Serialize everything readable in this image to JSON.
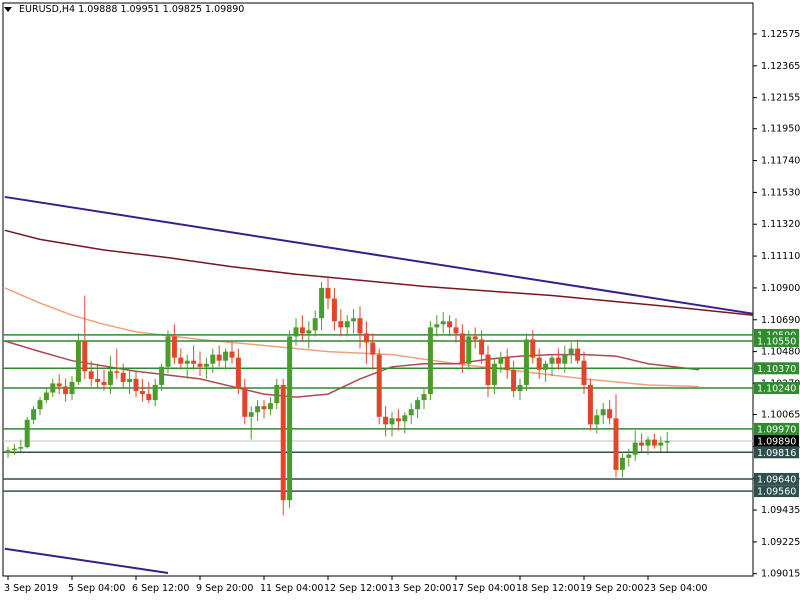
{
  "chart_data": {
    "type": "candlestick",
    "header": {
      "symbol": "EURUSD,H4",
      "ohlc": "1.09888 1.09951 1.09825 1.09890"
    },
    "ylim": [
      1.09,
      1.127
    ],
    "grid": false,
    "y_ticks": [
      "1.12575",
      "1.12365",
      "1.12155",
      "1.11950",
      "1.11740",
      "1.11530",
      "1.11320",
      "1.11110",
      "1.10900",
      "1.10690",
      "1.10480",
      "1.10270",
      "1.10065",
      "1.09855",
      "1.09645",
      "1.09435",
      "1.09225",
      "1.09015"
    ],
    "x_ticks": [
      {
        "label": "3 Sep 2019",
        "index": 0
      },
      {
        "label": "5 Sep 04:00",
        "index": 10
      },
      {
        "label": "6 Sep 12:00",
        "index": 20
      },
      {
        "label": "9 Sep 20:00",
        "index": 30
      },
      {
        "label": "11 Sep 04:00",
        "index": 40
      },
      {
        "label": "12 Sep 12:00",
        "index": 50
      },
      {
        "label": "13 Sep 20:00",
        "index": 60
      },
      {
        "label": "17 Sep 04:00",
        "index": 70
      },
      {
        "label": "18 Sep 12:00",
        "index": 80
      },
      {
        "label": "19 Sep 20:00",
        "index": 90
      },
      {
        "label": "23 Sep 04:00",
        "index": 100
      }
    ],
    "levels": [
      {
        "value": 1.1059,
        "label": "1.10590",
        "kind": "green"
      },
      {
        "value": 1.1055,
        "label": "1.10550",
        "kind": "green"
      },
      {
        "value": 1.1037,
        "label": "1.10370",
        "kind": "green"
      },
      {
        "value": 1.1024,
        "label": "1.10240",
        "kind": "green"
      },
      {
        "value": 1.0997,
        "label": "1.09970",
        "kind": "green"
      },
      {
        "value": 1.0989,
        "label": "1.09890",
        "kind": "price"
      },
      {
        "value": 1.09816,
        "label": "1.09816",
        "kind": "dark"
      },
      {
        "value": 1.0964,
        "label": "1.09640",
        "kind": "dark"
      },
      {
        "value": 1.0956,
        "label": "1.09560",
        "kind": "dark"
      }
    ],
    "trendlines": [
      {
        "name": "upper-trend",
        "color": "#3b1c8c",
        "from": [
          -0.5,
          1.115
        ],
        "to": [
          116.5,
          1.1073
        ]
      },
      {
        "name": "lower-trend",
        "color": "#3b1c8c",
        "from": [
          -0.5,
          1.0918
        ],
        "to": [
          25,
          1.0902
        ]
      }
    ],
    "moving_averages": [
      {
        "name": "ma-long-dark",
        "color": "#7a1420",
        "points": [
          [
            -0.5,
            1.1128
          ],
          [
            5,
            1.1122
          ],
          [
            15,
            1.1115
          ],
          [
            25,
            1.111
          ],
          [
            35,
            1.1104
          ],
          [
            45,
            1.1099
          ],
          [
            55,
            1.1095
          ],
          [
            65,
            1.1091
          ],
          [
            75,
            1.1088
          ],
          [
            85,
            1.1085
          ],
          [
            95,
            1.1081
          ],
          [
            105,
            1.1077
          ],
          [
            116.5,
            1.1072
          ]
        ]
      },
      {
        "name": "ma-mid-salmon",
        "color": "#f0a07a",
        "points": [
          [
            -0.5,
            1.109
          ],
          [
            5,
            1.108
          ],
          [
            10,
            1.1072
          ],
          [
            15,
            1.1066
          ],
          [
            20,
            1.1061
          ],
          [
            30,
            1.1056
          ],
          [
            40,
            1.1052
          ],
          [
            50,
            1.1048
          ],
          [
            60,
            1.1046
          ],
          [
            70,
            1.104
          ],
          [
            80,
            1.1035
          ],
          [
            90,
            1.103
          ],
          [
            100,
            1.1026
          ],
          [
            108,
            1.1025
          ]
        ]
      },
      {
        "name": "ma-short-brown",
        "color": "#b04850",
        "points": [
          [
            -0.5,
            1.1055
          ],
          [
            5,
            1.1048
          ],
          [
            10,
            1.1042
          ],
          [
            20,
            1.1035
          ],
          [
            30,
            1.103
          ],
          [
            40,
            1.102
          ],
          [
            45,
            1.1018
          ],
          [
            50,
            1.102
          ],
          [
            55,
            1.103
          ],
          [
            60,
            1.1038
          ],
          [
            65,
            1.104
          ],
          [
            70,
            1.104
          ],
          [
            75,
            1.1043
          ],
          [
            80,
            1.1045
          ],
          [
            85,
            1.1046
          ],
          [
            90,
            1.1046
          ],
          [
            95,
            1.1045
          ],
          [
            100,
            1.104
          ],
          [
            108,
            1.1036
          ]
        ]
      }
    ],
    "candles": [
      [
        1.0981,
        1.0985,
        1.0978,
        1.0983
      ],
      [
        1.0983,
        1.0987,
        1.098,
        1.0984
      ],
      [
        1.0984,
        1.099,
        1.0982,
        1.0985
      ],
      [
        1.0985,
        1.1005,
        1.0984,
        1.1003
      ],
      [
        1.1003,
        1.1012,
        1.1,
        1.101
      ],
      [
        1.101,
        1.1018,
        1.1006,
        1.1016
      ],
      [
        1.1016,
        1.1024,
        1.1014,
        1.1021
      ],
      [
        1.1021,
        1.103,
        1.1018,
        1.1027
      ],
      [
        1.1027,
        1.1033,
        1.102,
        1.1025
      ],
      [
        1.1025,
        1.103,
        1.1015,
        1.102
      ],
      [
        1.102,
        1.1032,
        1.1016,
        1.1028
      ],
      [
        1.1028,
        1.106,
        1.1026,
        1.1055
      ],
      [
        1.1055,
        1.1085,
        1.103,
        1.1035
      ],
      [
        1.1035,
        1.1042,
        1.1025,
        1.103
      ],
      [
        1.103,
        1.104,
        1.1024,
        1.1028
      ],
      [
        1.1028,
        1.1036,
        1.1022,
        1.1026
      ],
      [
        1.1026,
        1.1045,
        1.102,
        1.1035
      ],
      [
        1.1035,
        1.105,
        1.103,
        1.1034
      ],
      [
        1.1034,
        1.104,
        1.1024,
        1.1028
      ],
      [
        1.1028,
        1.1036,
        1.102,
        1.103
      ],
      [
        1.103,
        1.1035,
        1.1018,
        1.1022
      ],
      [
        1.1022,
        1.103,
        1.1015,
        1.102
      ],
      [
        1.102,
        1.1028,
        1.1014,
        1.1016
      ],
      [
        1.1016,
        1.103,
        1.1012,
        1.1026
      ],
      [
        1.1026,
        1.104,
        1.1022,
        1.1038
      ],
      [
        1.1038,
        1.1062,
        1.1034,
        1.1058
      ],
      [
        1.1058,
        1.1066,
        1.104,
        1.1044
      ],
      [
        1.1044,
        1.105,
        1.1036,
        1.104
      ],
      [
        1.104,
        1.1046,
        1.103,
        1.1042
      ],
      [
        1.1042,
        1.1052,
        1.1036,
        1.104
      ],
      [
        1.104,
        1.1048,
        1.1032,
        1.1038
      ],
      [
        1.1038,
        1.1044,
        1.103,
        1.104
      ],
      [
        1.104,
        1.105,
        1.1034,
        1.1046
      ],
      [
        1.1046,
        1.1052,
        1.1038,
        1.1042
      ],
      [
        1.1042,
        1.105,
        1.1036,
        1.1048
      ],
      [
        1.1048,
        1.1054,
        1.104,
        1.1044
      ],
      [
        1.1044,
        1.105,
        1.102,
        1.1024
      ],
      [
        1.1024,
        1.103,
        1.1,
        1.1005
      ],
      [
        1.1005,
        1.1012,
        1.099,
        1.1008
      ],
      [
        1.1008,
        1.1016,
        1.1002,
        1.1012
      ],
      [
        1.1012,
        1.1016,
        1.1004,
        1.101
      ],
      [
        1.101,
        1.1018,
        1.1006,
        1.1014
      ],
      [
        1.1014,
        1.103,
        1.101,
        1.1026
      ],
      [
        1.1026,
        1.103,
        1.094,
        1.095
      ],
      [
        1.095,
        1.1062,
        1.0945,
        1.1058
      ],
      [
        1.1058,
        1.107,
        1.1052,
        1.1064
      ],
      [
        1.1064,
        1.1072,
        1.1055,
        1.106
      ],
      [
        1.106,
        1.1068,
        1.105,
        1.1062
      ],
      [
        1.1062,
        1.1075,
        1.1058,
        1.107
      ],
      [
        1.107,
        1.1094,
        1.1062,
        1.109
      ],
      [
        1.109,
        1.1098,
        1.1076,
        1.1083
      ],
      [
        1.1083,
        1.109,
        1.1062,
        1.1068
      ],
      [
        1.1068,
        1.1076,
        1.1058,
        1.1064
      ],
      [
        1.1064,
        1.1072,
        1.1058,
        1.1068
      ],
      [
        1.1068,
        1.1076,
        1.106,
        1.107
      ],
      [
        1.107,
        1.1078,
        1.105,
        1.106
      ],
      [
        1.106,
        1.1068,
        1.104,
        1.1054
      ],
      [
        1.1054,
        1.106,
        1.1036,
        1.1046
      ],
      [
        1.1046,
        1.105,
        1.1,
        1.1005
      ],
      [
        1.1005,
        1.1012,
        1.0992,
        1.1
      ],
      [
        1.1,
        1.1008,
        1.0992,
        1.1004
      ],
      [
        1.1004,
        1.101,
        1.0996,
        1.1002
      ],
      [
        1.1002,
        1.1008,
        1.0994,
        1.1006
      ],
      [
        1.1006,
        1.1014,
        1.1,
        1.101
      ],
      [
        1.101,
        1.1018,
        1.1004,
        1.1016
      ],
      [
        1.1016,
        1.1024,
        1.101,
        1.102
      ],
      [
        1.102,
        1.1068,
        1.1016,
        1.1064
      ],
      [
        1.1064,
        1.1072,
        1.1058,
        1.1066
      ],
      [
        1.1066,
        1.1074,
        1.106,
        1.1068
      ],
      [
        1.1068,
        1.1072,
        1.1058,
        1.1064
      ],
      [
        1.1064,
        1.107,
        1.1054,
        1.106
      ],
      [
        1.106,
        1.1066,
        1.1034,
        1.104
      ],
      [
        1.104,
        1.1062,
        1.1036,
        1.1058
      ],
      [
        1.1058,
        1.1064,
        1.105,
        1.1056
      ],
      [
        1.1056,
        1.1062,
        1.104,
        1.1046
      ],
      [
        1.1046,
        1.1052,
        1.1018,
        1.1026
      ],
      [
        1.1026,
        1.1044,
        1.102,
        1.104
      ],
      [
        1.104,
        1.1048,
        1.1034,
        1.1044
      ],
      [
        1.1044,
        1.105,
        1.103,
        1.1036
      ],
      [
        1.1036,
        1.1042,
        1.1018,
        1.1022
      ],
      [
        1.1022,
        1.103,
        1.1016,
        1.1026
      ],
      [
        1.1026,
        1.106,
        1.1022,
        1.1056
      ],
      [
        1.1056,
        1.1062,
        1.104,
        1.1044
      ],
      [
        1.1044,
        1.105,
        1.103,
        1.1036
      ],
      [
        1.1036,
        1.1042,
        1.1028,
        1.104
      ],
      [
        1.104,
        1.1046,
        1.1032,
        1.1044
      ],
      [
        1.1044,
        1.105,
        1.1036,
        1.104
      ],
      [
        1.104,
        1.1052,
        1.1034,
        1.1046
      ],
      [
        1.1046,
        1.1054,
        1.104,
        1.105
      ],
      [
        1.105,
        1.1056,
        1.104,
        1.1042
      ],
      [
        1.1042,
        1.1048,
        1.102,
        1.1026
      ],
      [
        1.1026,
        1.103,
        1.0996,
        1.1
      ],
      [
        1.1,
        1.101,
        1.0994,
        1.1006
      ],
      [
        1.1006,
        1.1014,
        1.1,
        1.101
      ],
      [
        1.101,
        1.1016,
        1.1,
        1.1004
      ],
      [
        1.1004,
        1.102,
        1.0965,
        1.097
      ],
      [
        1.097,
        1.0982,
        1.0965,
        1.0978
      ],
      [
        1.0978,
        1.0984,
        1.0972,
        1.098
      ],
      [
        1.098,
        1.0996,
        1.0976,
        1.0988
      ],
      [
        1.0988,
        1.0994,
        1.0982,
        1.0986
      ],
      [
        1.0986,
        1.0992,
        1.098,
        1.099
      ],
      [
        1.099,
        1.0994,
        1.0984,
        1.0986
      ],
      [
        1.0986,
        1.0992,
        1.0982,
        1.0988
      ],
      [
        1.0988,
        1.0995,
        1.0982,
        1.0989
      ]
    ]
  }
}
